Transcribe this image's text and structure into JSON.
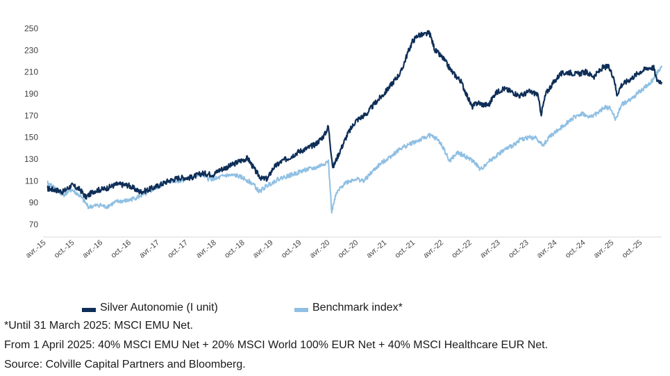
{
  "chart_data": {
    "type": "line",
    "title": "",
    "xlabel": "",
    "ylabel": "",
    "ylim": [
      60,
      260
    ],
    "yticks": [
      70,
      90,
      110,
      130,
      150,
      170,
      190,
      210,
      230,
      250
    ],
    "xlim": [
      2015.17,
      2025.99
    ],
    "xtick_labels": [
      "avr.-15",
      "oct.-15",
      "avr.-16",
      "oct.-16",
      "avr.-17",
      "oct.-17",
      "avr.-18",
      "oct.-18",
      "avr.-19",
      "oct.-19",
      "avr.-20",
      "oct.-20",
      "avr.-21",
      "oct.-21",
      "avr.-22",
      "oct.-22",
      "avr.-23",
      "oct.-23",
      "avr.-24",
      "oct.-24",
      "avr.-25",
      "oct.-25"
    ],
    "series": [
      {
        "name": "Silver Autonomie (I unit)",
        "color": "#0e2e57",
        "points": [
          [
            2015.17,
            103
          ],
          [
            2015.3,
            102
          ],
          [
            2015.45,
            100
          ],
          [
            2015.6,
            106
          ],
          [
            2015.75,
            102
          ],
          [
            2015.85,
            95
          ],
          [
            2016.0,
            101
          ],
          [
            2016.2,
            103
          ],
          [
            2016.4,
            107
          ],
          [
            2016.6,
            106
          ],
          [
            2016.8,
            100
          ],
          [
            2016.9,
            101
          ],
          [
            2017.1,
            105
          ],
          [
            2017.3,
            110
          ],
          [
            2017.5,
            113
          ],
          [
            2017.7,
            113
          ],
          [
            2017.9,
            117
          ],
          [
            2018.1,
            116
          ],
          [
            2018.2,
            120
          ],
          [
            2018.4,
            124
          ],
          [
            2018.55,
            128
          ],
          [
            2018.7,
            131
          ],
          [
            2018.85,
            118
          ],
          [
            2018.95,
            112
          ],
          [
            2019.05,
            112
          ],
          [
            2019.15,
            122
          ],
          [
            2019.3,
            128
          ],
          [
            2019.45,
            132
          ],
          [
            2019.6,
            137
          ],
          [
            2019.75,
            140
          ],
          [
            2019.9,
            144
          ],
          [
            2020.05,
            152
          ],
          [
            2020.12,
            160
          ],
          [
            2020.2,
            122
          ],
          [
            2020.28,
            132
          ],
          [
            2020.45,
            152
          ],
          [
            2020.6,
            165
          ],
          [
            2020.8,
            172
          ],
          [
            2020.95,
            182
          ],
          [
            2021.1,
            190
          ],
          [
            2021.25,
            200
          ],
          [
            2021.4,
            210
          ],
          [
            2021.5,
            225
          ],
          [
            2021.6,
            238
          ],
          [
            2021.7,
            244
          ],
          [
            2021.8,
            244
          ],
          [
            2021.9,
            246
          ],
          [
            2022.0,
            230
          ],
          [
            2022.15,
            222
          ],
          [
            2022.3,
            210
          ],
          [
            2022.45,
            202
          ],
          [
            2022.55,
            190
          ],
          [
            2022.65,
            178
          ],
          [
            2022.75,
            182
          ],
          [
            2022.85,
            180
          ],
          [
            2022.95,
            180
          ],
          [
            2023.05,
            190
          ],
          [
            2023.2,
            195
          ],
          [
            2023.35,
            192
          ],
          [
            2023.5,
            188
          ],
          [
            2023.65,
            192
          ],
          [
            2023.8,
            190
          ],
          [
            2023.87,
            172
          ],
          [
            2023.95,
            190
          ],
          [
            2024.05,
            198
          ],
          [
            2024.2,
            208
          ],
          [
            2024.35,
            210
          ],
          [
            2024.5,
            208
          ],
          [
            2024.65,
            210
          ],
          [
            2024.8,
            206
          ],
          [
            2024.95,
            214
          ],
          [
            2025.05,
            215
          ],
          [
            2025.15,
            205
          ],
          [
            2025.2,
            189
          ],
          [
            2025.28,
            198
          ],
          [
            2025.45,
            204
          ],
          [
            2025.6,
            210
          ],
          [
            2025.75,
            214
          ],
          [
            2025.85,
            214
          ],
          [
            2025.9,
            203
          ],
          [
            2025.99,
            201
          ]
        ]
      },
      {
        "name": "Benchmark index*",
        "color": "#8fbfe3",
        "points": [
          [
            2015.17,
            108
          ],
          [
            2015.3,
            104
          ],
          [
            2015.45,
            97
          ],
          [
            2015.6,
            102
          ],
          [
            2015.75,
            96
          ],
          [
            2015.9,
            86
          ],
          [
            2016.1,
            88
          ],
          [
            2016.2,
            86
          ],
          [
            2016.4,
            91
          ],
          [
            2016.6,
            92
          ],
          [
            2016.8,
            96
          ],
          [
            2016.9,
            98
          ],
          [
            2017.1,
            104
          ],
          [
            2017.3,
            110
          ],
          [
            2017.5,
            110
          ],
          [
            2017.7,
            113
          ],
          [
            2017.9,
            116
          ],
          [
            2018.0,
            112
          ],
          [
            2018.15,
            112
          ],
          [
            2018.3,
            115
          ],
          [
            2018.5,
            115
          ],
          [
            2018.65,
            112
          ],
          [
            2018.8,
            107
          ],
          [
            2018.9,
            100
          ],
          [
            2019.05,
            106
          ],
          [
            2019.25,
            112
          ],
          [
            2019.5,
            116
          ],
          [
            2019.7,
            120
          ],
          [
            2019.9,
            122
          ],
          [
            2020.05,
            126
          ],
          [
            2020.12,
            128
          ],
          [
            2020.18,
            82
          ],
          [
            2020.26,
            98
          ],
          [
            2020.4,
            108
          ],
          [
            2020.6,
            112
          ],
          [
            2020.75,
            110
          ],
          [
            2020.85,
            116
          ],
          [
            2021.0,
            124
          ],
          [
            2021.2,
            132
          ],
          [
            2021.4,
            140
          ],
          [
            2021.6,
            145
          ],
          [
            2021.75,
            148
          ],
          [
            2021.9,
            152
          ],
          [
            2022.05,
            148
          ],
          [
            2022.15,
            140
          ],
          [
            2022.25,
            128
          ],
          [
            2022.4,
            136
          ],
          [
            2022.55,
            132
          ],
          [
            2022.7,
            127
          ],
          [
            2022.8,
            120
          ],
          [
            2022.9,
            126
          ],
          [
            2023.05,
            132
          ],
          [
            2023.2,
            138
          ],
          [
            2023.35,
            142
          ],
          [
            2023.5,
            148
          ],
          [
            2023.65,
            150
          ],
          [
            2023.8,
            149
          ],
          [
            2023.9,
            142
          ],
          [
            2024.0,
            150
          ],
          [
            2024.2,
            158
          ],
          [
            2024.35,
            165
          ],
          [
            2024.5,
            170
          ],
          [
            2024.6,
            172
          ],
          [
            2024.7,
            168
          ],
          [
            2024.85,
            172
          ],
          [
            2025.0,
            178
          ],
          [
            2025.1,
            176
          ],
          [
            2025.18,
            166
          ],
          [
            2025.28,
            180
          ],
          [
            2025.45,
            185
          ],
          [
            2025.6,
            192
          ],
          [
            2025.75,
            198
          ],
          [
            2025.85,
            204
          ],
          [
            2025.99,
            216
          ]
        ]
      }
    ],
    "legend_position": "bottom",
    "notes": [
      "*Until 31 March 2025: MSCI EMU Net.",
      "From 1 April 2025: 40% MSCI EMU Net + 20% MSCI World 100% EUR Net + 40% MSCI Healthcare EUR Net.",
      "Source: Colville Capital Partners and Bloomberg."
    ]
  }
}
